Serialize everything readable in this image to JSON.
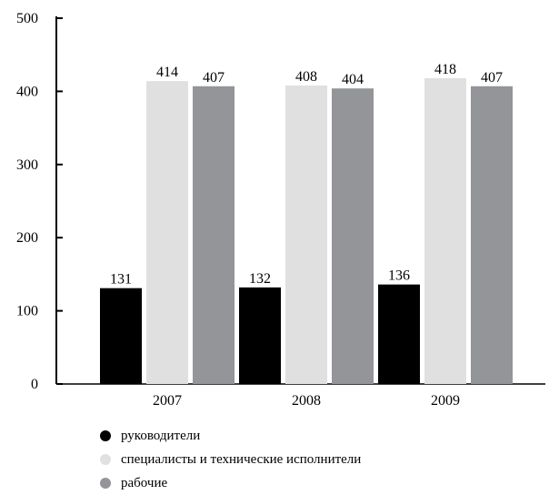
{
  "chart_data": {
    "type": "bar",
    "categories": [
      "2007",
      "2008",
      "2009"
    ],
    "series": [
      {
        "name": "руководители",
        "values": [
          131,
          132,
          136
        ],
        "color": "#000000"
      },
      {
        "name": "специалисты и технические исполнители",
        "values": [
          414,
          408,
          418
        ],
        "color": "#e0e0e0"
      },
      {
        "name": "рабочие",
        "values": [
          407,
          404,
          407
        ],
        "color": "#939598"
      }
    ],
    "ylim": [
      0,
      500
    ],
    "yticks": [
      "0",
      "100",
      "200",
      "300",
      "400",
      "500"
    ],
    "title": "",
    "xlabel": "",
    "ylabel": "",
    "grid": false,
    "legend_position": "bottom-left"
  }
}
